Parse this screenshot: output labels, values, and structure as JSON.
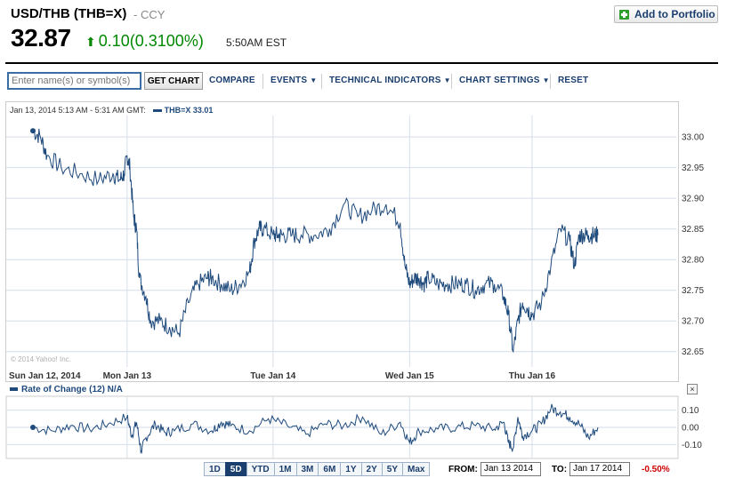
{
  "header": {
    "title": "USD/THB (THB=X)",
    "category": "- CCY",
    "price": "32.87",
    "change": "0.10(0.3100%)",
    "time": "5:50AM EST",
    "add_portfolio": "Add to Portfolio"
  },
  "toolbar": {
    "symbol_placeholder": "Enter name(s) or symbol(s)",
    "get_chart": "GET CHART",
    "compare": "COMPARE",
    "events": "EVENTS",
    "technical": "TECHNICAL INDICATORS",
    "settings": "CHART SETTINGS",
    "reset": "RESET"
  },
  "chart_legend": {
    "range": "Jan 13, 2014 5:13 AM - 5:31 AM GMT:",
    "series": "THB=X 33.01"
  },
  "watermark": "© 2014 Yahoo! Inc.",
  "indicator": {
    "label": "Rate of Change (12) N/A",
    "close": "×"
  },
  "range_buttons": [
    "1D",
    "5D",
    "YTD",
    "1M",
    "3M",
    "6M",
    "1Y",
    "2Y",
    "5Y",
    "Max"
  ],
  "active_range": "5D",
  "date_range": {
    "from_label": "FROM:",
    "from": "Jan 13 2014",
    "to_label": "TO:",
    "to": "Jan 17 2014",
    "change": "-0.50%"
  },
  "colors": {
    "series": "#1e4a7c",
    "up": "#008800",
    "down": "#cc0000",
    "grid": "#d6dee8"
  },
  "chart_data": [
    {
      "type": "line",
      "title": "",
      "x_tick_labels": [
        "Sun Jan 12, 2014",
        "Mon Jan 13",
        "Tue Jan 14",
        "Wed Jan 15",
        "Thu Jan 16"
      ],
      "y_tick_labels": [
        "33.00",
        "32.95",
        "32.90",
        "32.85",
        "32.80",
        "32.75",
        "32.70",
        "32.65"
      ],
      "ylim": [
        32.625,
        33.035
      ],
      "grid": true,
      "series": [
        {
          "name": "THB=X",
          "x": [
            0.0,
            0.08,
            0.15,
            0.3,
            0.5,
            0.7,
            0.85,
            0.92,
            0.97,
            1.0,
            1.03,
            1.07,
            1.1,
            1.13,
            1.2,
            1.25,
            1.35,
            1.45,
            1.55,
            1.65,
            1.75,
            1.85,
            1.9,
            2.0,
            2.1,
            2.2,
            2.3,
            2.35,
            2.4,
            2.45,
            2.55,
            2.6,
            2.65,
            2.75,
            2.85,
            3.0,
            3.15,
            3.3,
            3.45,
            3.6,
            3.75,
            3.9,
            3.95,
            4.0,
            4.05,
            4.1,
            4.15,
            4.2,
            4.3,
            4.4,
            4.5,
            4.6,
            4.7,
            4.8,
            4.9,
            5.0,
            5.05,
            5.1,
            5.15,
            5.2,
            5.25,
            5.3,
            5.4,
            5.5,
            5.6,
            5.7,
            5.75,
            5.8,
            5.85,
            5.9,
            5.95,
            6.0
          ],
          "values": [
            33.01,
            33.0,
            32.97,
            32.95,
            32.94,
            32.93,
            32.94,
            32.93,
            32.94,
            32.97,
            32.95,
            32.87,
            32.85,
            32.77,
            32.74,
            32.7,
            32.7,
            32.69,
            32.68,
            32.73,
            32.76,
            32.77,
            32.77,
            32.76,
            32.75,
            32.76,
            32.78,
            32.83,
            32.85,
            32.85,
            32.84,
            32.84,
            32.84,
            32.84,
            32.84,
            32.84,
            32.85,
            32.89,
            32.87,
            32.88,
            32.89,
            32.86,
            32.79,
            32.76,
            32.77,
            32.77,
            32.76,
            32.77,
            32.76,
            32.76,
            32.76,
            32.76,
            32.75,
            32.76,
            32.76,
            32.74,
            32.71,
            32.65,
            32.7,
            32.73,
            32.72,
            32.71,
            32.73,
            32.79,
            32.85,
            32.83,
            32.79,
            32.84,
            32.84,
            32.84,
            32.84,
            32.84
          ]
        }
      ]
    },
    {
      "type": "line",
      "title": "",
      "y_tick_labels": [
        "0.10",
        "0.00",
        "-0.10"
      ],
      "ylim": [
        -0.16,
        0.16
      ],
      "grid": true,
      "series": [
        {
          "name": "Rate of Change (12)",
          "x": [
            0.0,
            0.2,
            0.4,
            0.6,
            0.8,
            1.0,
            1.05,
            1.1,
            1.15,
            1.2,
            1.3,
            1.4,
            1.5,
            1.7,
            1.9,
            2.0,
            2.1,
            2.3,
            2.5,
            2.7,
            2.9,
            3.1,
            3.3,
            3.5,
            3.7,
            3.9,
            4.0,
            4.1,
            4.3,
            4.5,
            4.7,
            4.9,
            5.0,
            5.05,
            5.1,
            5.15,
            5.2,
            5.3,
            5.4,
            5.5,
            5.6,
            5.7,
            5.8,
            5.9,
            6.0
          ],
          "values": [
            0.0,
            -0.02,
            0.01,
            -0.01,
            0.02,
            0.06,
            -0.05,
            0.03,
            -0.14,
            -0.06,
            0.02,
            -0.03,
            -0.02,
            0.02,
            -0.02,
            0.03,
            0.01,
            -0.02,
            0.05,
            0.01,
            -0.04,
            0.02,
            0.01,
            0.06,
            -0.04,
            0.03,
            -0.09,
            -0.02,
            -0.01,
            0.0,
            0.01,
            -0.01,
            0.03,
            -0.09,
            -0.12,
            0.06,
            -0.05,
            -0.02,
            0.02,
            0.11,
            0.09,
            0.06,
            0.02,
            -0.06,
            0.0
          ]
        }
      ]
    }
  ]
}
